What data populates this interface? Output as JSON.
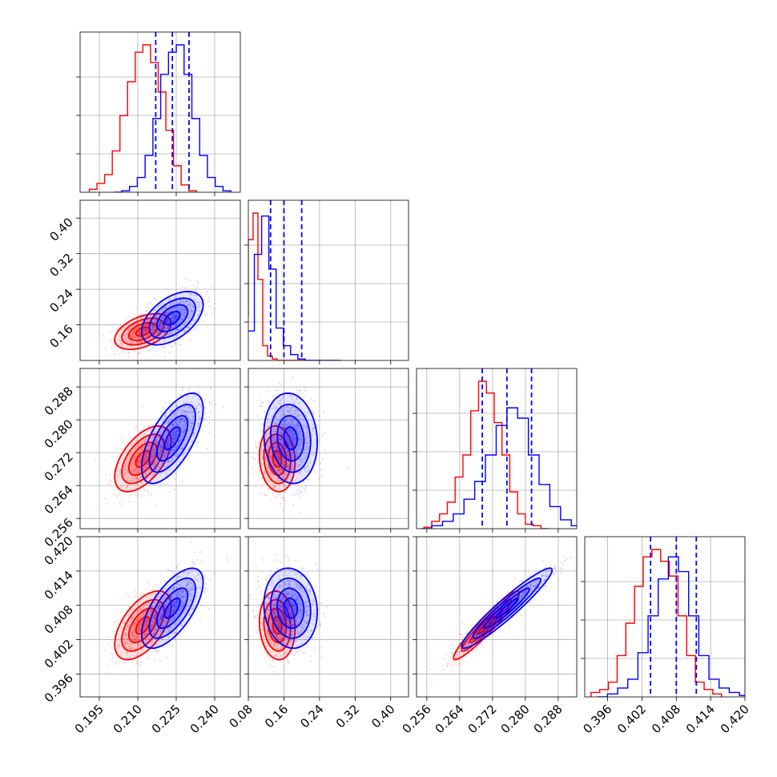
{
  "chart_data": {
    "type": "corner",
    "params": [
      {
        "ticks": [
          0.195,
          0.21,
          0.225,
          0.24
        ],
        "tick_labels": [
          "0.195",
          "0.210",
          "0.225",
          "0.240"
        ],
        "range": [
          0.1875,
          0.25
        ]
      },
      {
        "ticks": [
          0.16,
          0.24,
          0.32,
          0.4
        ],
        "tick_labels": [
          "0.16",
          "0.24",
          "0.32",
          "0.40"
        ],
        "xticks": [
          0.08,
          0.16,
          0.24,
          0.32,
          0.4
        ],
        "xtick_labels": [
          "0.08",
          "0.16",
          "0.24",
          "0.32",
          "0.40"
        ],
        "range": [
          0.08,
          0.44
        ]
      },
      {
        "ticks": [
          0.256,
          0.264,
          0.272,
          0.28,
          0.288
        ],
        "tick_labels": [
          "0.256",
          "0.264",
          "0.272",
          "0.280",
          "0.288"
        ],
        "range": [
          0.2535,
          0.2925
        ]
      },
      {
        "ticks": [
          0.396,
          0.402,
          0.408,
          0.414,
          0.42
        ],
        "tick_labels": [
          "0.396",
          "0.402",
          "0.408",
          "0.414",
          "0.420"
        ],
        "range": [
          0.392,
          0.42
        ]
      }
    ],
    "series": [
      {
        "color": "#ff0000",
        "mean": [
          0.212,
          0.145,
          0.2705,
          0.4045
        ],
        "sd": [
          0.0055,
          0.02,
          0.004,
          0.003
        ],
        "corr": {
          "0-1": 0.45,
          "0-2": 0.55,
          "0-3": 0.55,
          "1-2": -0.1,
          "1-3": -0.1,
          "2-3": 0.95
        },
        "hist": [
          [
            0.02,
            0.06,
            0.12,
            0.28,
            0.52,
            0.75,
            0.95,
            1.0,
            0.88,
            0.68,
            0.42,
            0.18,
            0.05,
            0.01
          ],
          [
            0.3,
            0.82,
            1.0,
            0.55,
            0.1,
            0.03,
            0.01,
            0.0,
            0.0,
            0.0,
            0.0,
            0.0,
            0.0,
            0.0
          ],
          [
            0.01,
            0.05,
            0.1,
            0.18,
            0.35,
            0.5,
            0.8,
            1.0,
            0.92,
            0.72,
            0.5,
            0.25,
            0.1,
            0.03,
            0.02,
            0.0
          ],
          [
            0.03,
            0.05,
            0.1,
            0.28,
            0.5,
            0.75,
            0.95,
            1.0,
            0.92,
            0.82,
            0.55,
            0.28,
            0.1,
            0.05,
            0.02
          ]
        ]
      },
      {
        "color": "#0000ff",
        "mean": [
          0.2235,
          0.175,
          0.2755,
          0.4075
        ],
        "sd": [
          0.006,
          0.03,
          0.0055,
          0.0035
        ],
        "corr": {
          "0-1": 0.5,
          "0-2": 0.65,
          "0-3": 0.65,
          "1-2": -0.1,
          "1-3": -0.1,
          "2-3": 0.95
        },
        "hist": [
          [
            0.0,
            0.01,
            0.04,
            0.1,
            0.25,
            0.5,
            0.8,
            0.95,
            1.0,
            0.8,
            0.5,
            0.25,
            0.1,
            0.04,
            0.01
          ],
          [
            0.0,
            0.2,
            0.72,
            0.98,
            0.62,
            0.22,
            0.1,
            0.04,
            0.01,
            0.0,
            0.0,
            0.0,
            0.0,
            0.0
          ],
          [
            0.0,
            0.02,
            0.05,
            0.1,
            0.2,
            0.32,
            0.5,
            0.7,
            0.82,
            0.75,
            0.5,
            0.3,
            0.15,
            0.06,
            0.02,
            0.01
          ],
          [
            0.0,
            0.02,
            0.06,
            0.12,
            0.3,
            0.55,
            0.8,
            0.95,
            0.85,
            0.55,
            0.28,
            0.12,
            0.06,
            0.03,
            0.01
          ]
        ]
      }
    ],
    "quantiles": {
      "color": "#0000ff",
      "values": [
        [
          0.217,
          0.2235,
          0.23
        ],
        [
          0.13,
          0.16,
          0.2
        ],
        [
          0.2695,
          0.2755,
          0.2815
        ],
        [
          0.4035,
          0.408,
          0.4115
        ]
      ]
    },
    "grid": true
  }
}
